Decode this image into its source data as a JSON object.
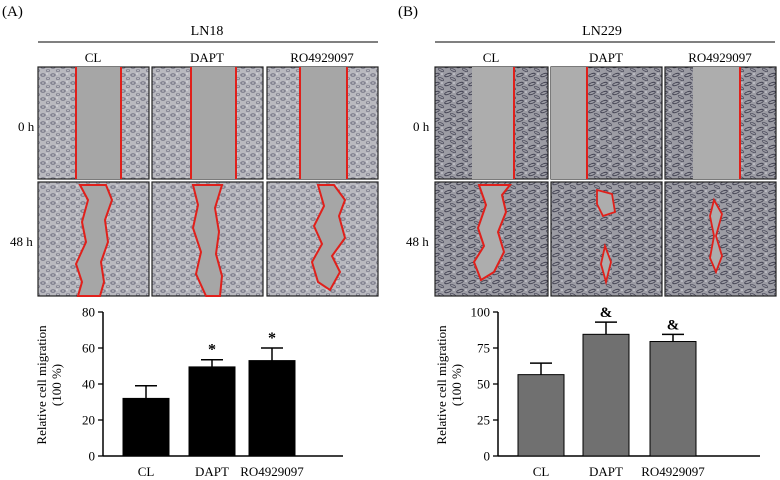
{
  "panels": [
    {
      "letter": "(A)",
      "cell_line": "LN18",
      "conditions": [
        "CL",
        "DAPT",
        "RO4929097"
      ],
      "timepoints": [
        "0 h",
        "48 h"
      ]
    },
    {
      "letter": "(B)",
      "cell_line": "LN229",
      "conditions": [
        "CL",
        "DAPT",
        "RO4929097"
      ],
      "timepoints": [
        "0 h",
        "48 h"
      ]
    }
  ],
  "colors": {
    "bar_A": "#000000",
    "bar_B": "#707070",
    "wound_line": "#e0201b"
  },
  "chart_data": [
    {
      "type": "bar",
      "categories": [
        "CL",
        "DAPT",
        "RO4929097"
      ],
      "values": [
        32,
        49.5,
        53
      ],
      "errors": [
        7,
        4,
        7
      ],
      "significance": [
        "",
        "*",
        "*"
      ],
      "ylabel": "Relative cell migration\n(100 %)",
      "ylim": [
        0,
        80
      ],
      "yticks": [
        0,
        20,
        40,
        60,
        80
      ]
    },
    {
      "type": "bar",
      "categories": [
        "CL",
        "DAPT",
        "RO4929097"
      ],
      "values": [
        56.5,
        84.5,
        79.5
      ],
      "errors": [
        8,
        8.5,
        5
      ],
      "significance": [
        "",
        "&",
        "&"
      ],
      "ylabel": "Relative cell migration\n(100 %)",
      "ylim": [
        0,
        100
      ],
      "yticks": [
        0,
        25,
        50,
        75,
        100
      ]
    }
  ]
}
